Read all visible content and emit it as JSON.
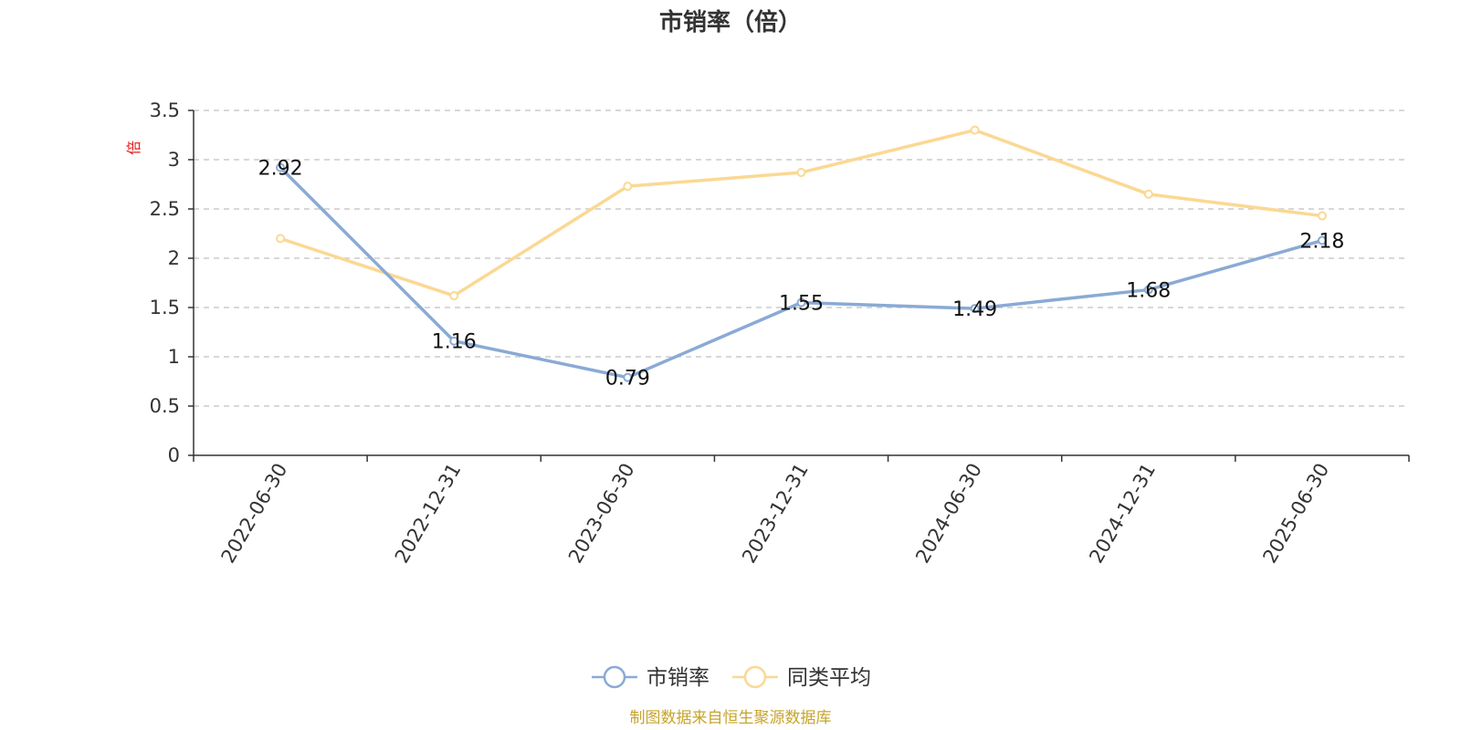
{
  "chart_data": {
    "type": "line",
    "title": "市销率（倍）",
    "ylabel": "倍",
    "xlabel": "",
    "ylim": [
      0,
      3.5
    ],
    "yticks": [
      "0",
      "0.5",
      "1",
      "1.5",
      "2",
      "2.5",
      "3",
      "3.5"
    ],
    "ytick_values": [
      0,
      0.5,
      1,
      1.5,
      2,
      2.5,
      3,
      3.5
    ],
    "categories": [
      "2022-06-30",
      "2022-12-31",
      "2023-06-30",
      "2023-12-31",
      "2024-06-30",
      "2024-12-31",
      "2025-06-30"
    ],
    "series": [
      {
        "name": "市销率",
        "color": "#8aaad5",
        "values": [
          2.92,
          1.16,
          0.79,
          1.55,
          1.49,
          1.68,
          2.18
        ],
        "labels": [
          "2.92",
          "1.16",
          "0.79",
          "1.55",
          "1.49",
          "1.68",
          "2.18"
        ]
      },
      {
        "name": "同类平均",
        "color": "#fbd893",
        "values": [
          2.2,
          1.62,
          2.73,
          2.87,
          3.3,
          2.65,
          2.43
        ]
      }
    ],
    "grid": true,
    "legend": "bottom-center",
    "source_note": "制图数据来自恒生聚源数据库"
  }
}
